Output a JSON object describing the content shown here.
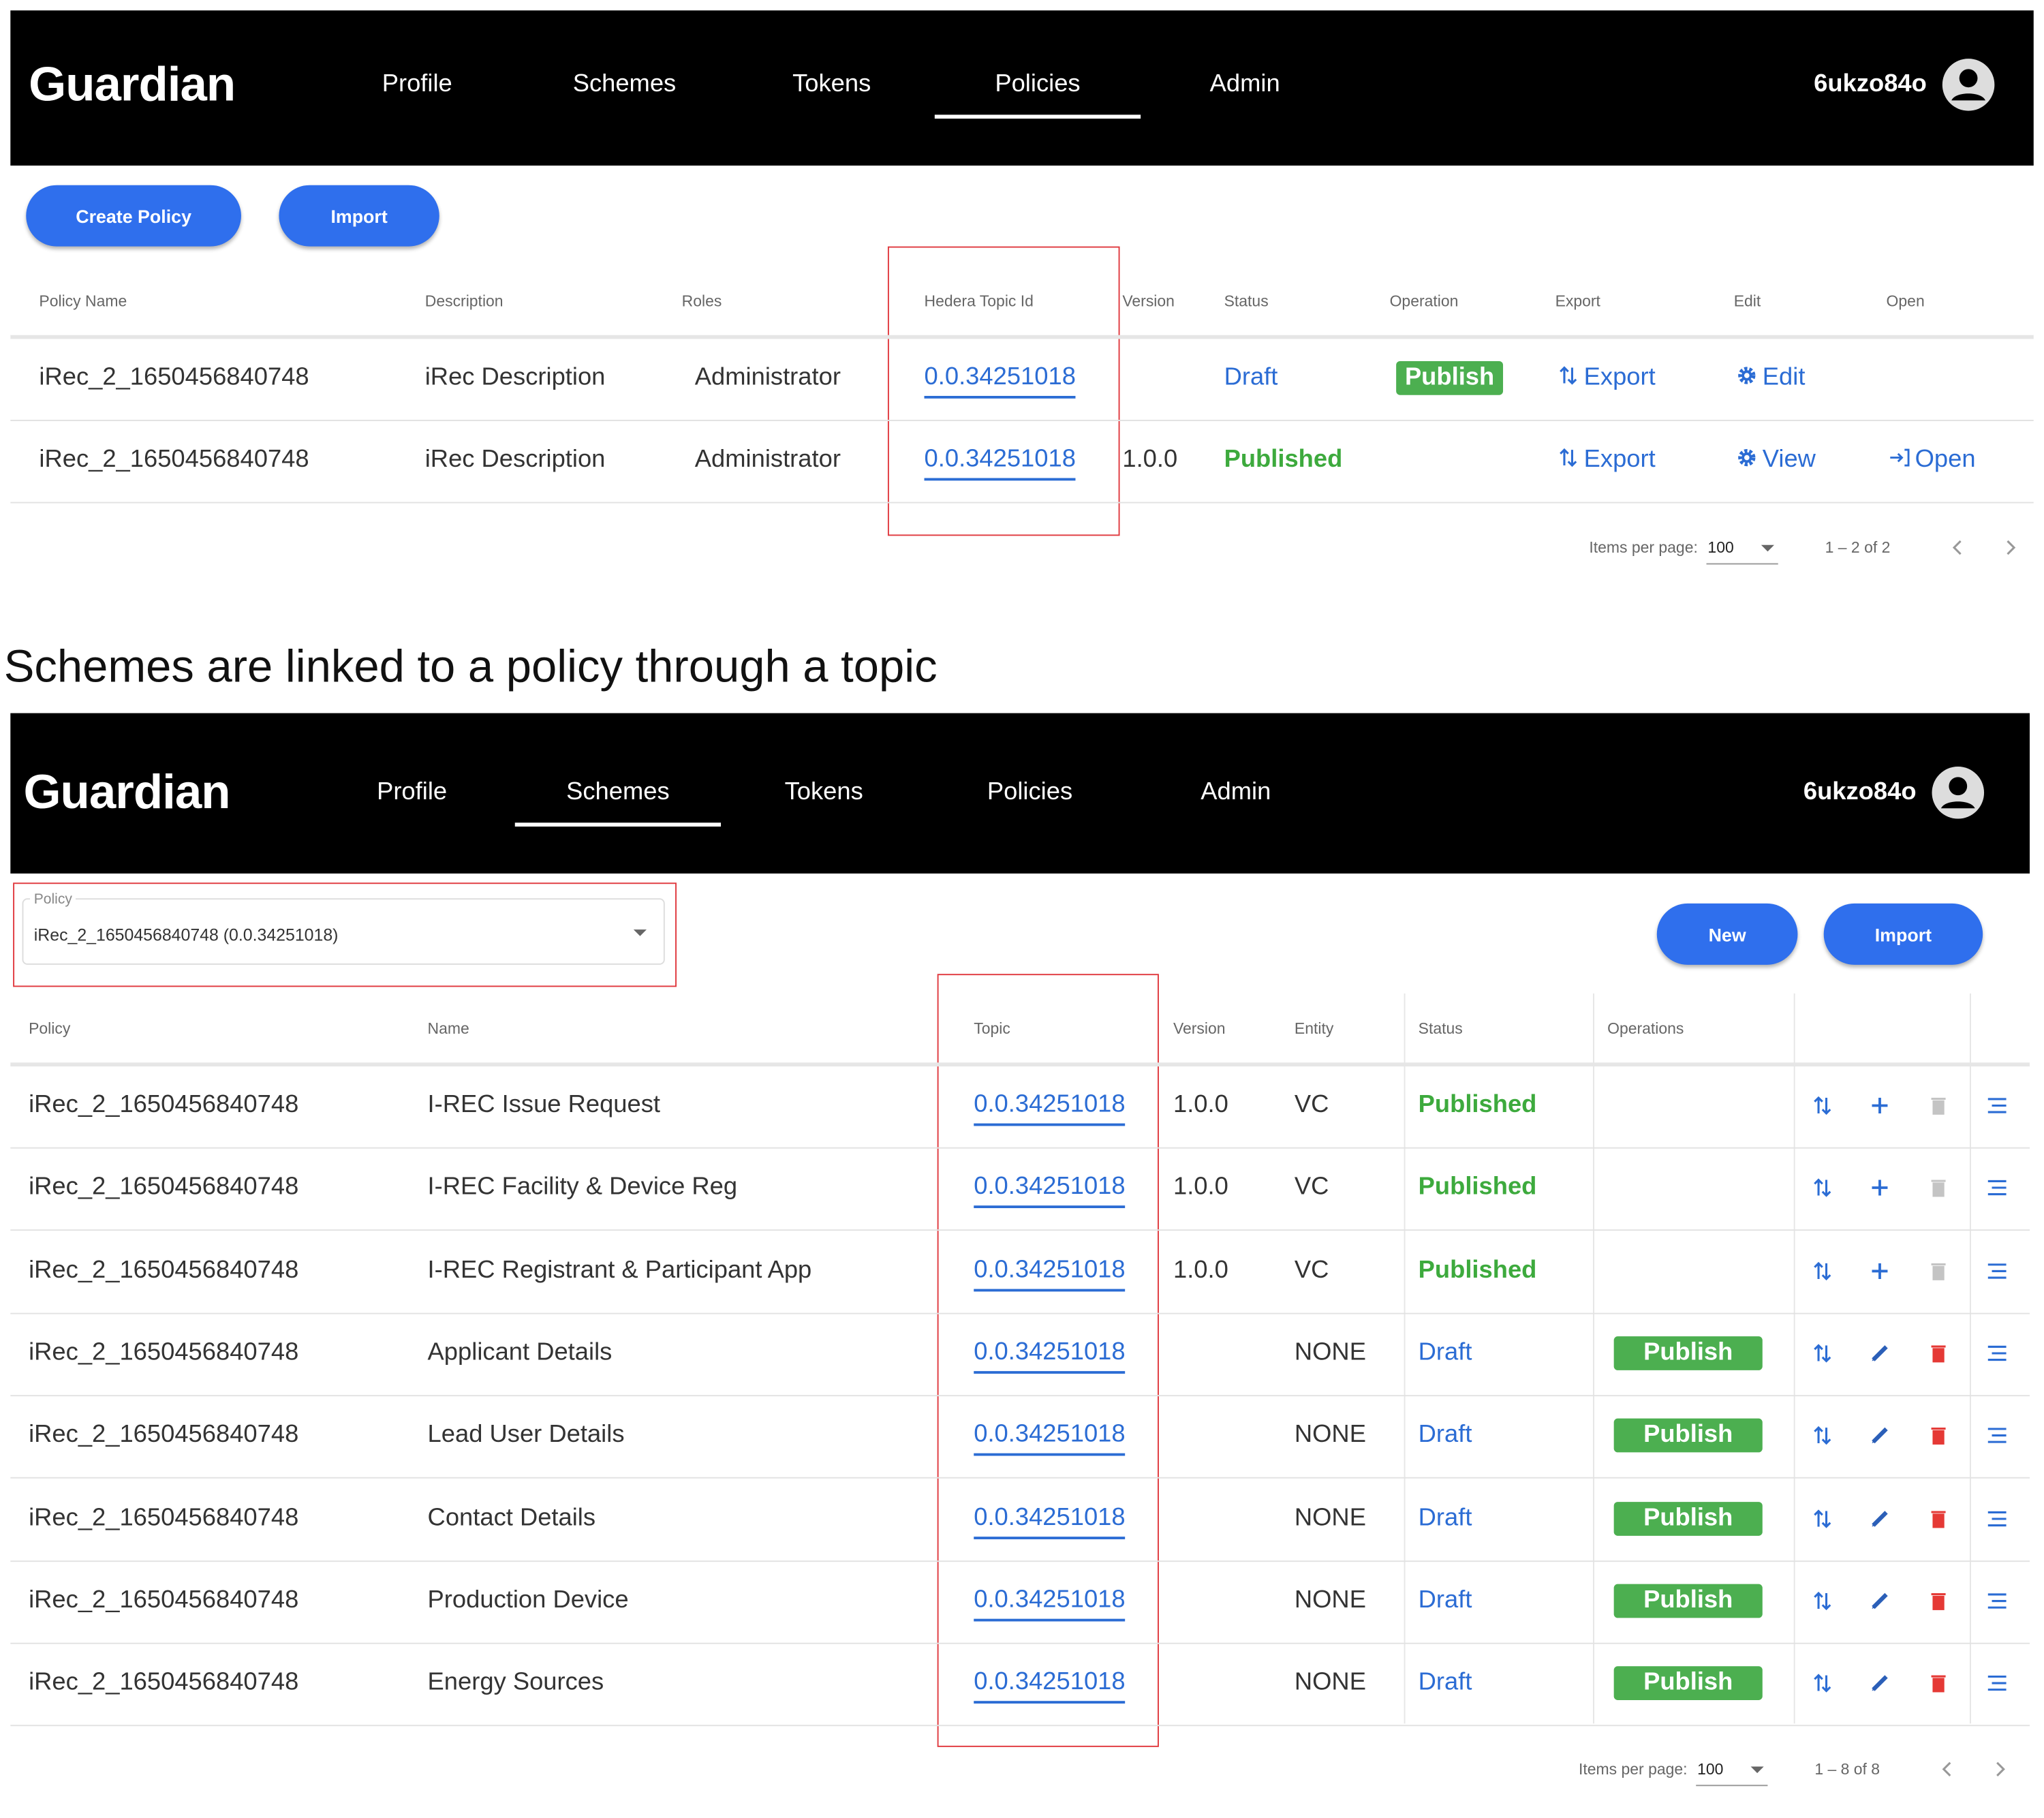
{
  "screen1": {
    "brand": "Guardian",
    "nav": [
      "Profile",
      "Schemes",
      "Tokens",
      "Policies",
      "Admin"
    ],
    "user": "6ukzo84o",
    "buttons": [
      "Create Policy",
      "Import"
    ],
    "columns": [
      "Policy Name",
      "Description",
      "Roles",
      "Hedera Topic Id",
      "Version",
      "Status",
      "Operation",
      "Export",
      "Edit",
      "Open"
    ],
    "rows": [
      {
        "name": "iRec_2_1650456840748",
        "description": "iRec Description",
        "role": "Administrator",
        "topic": "0.0.34251018",
        "status": "Draft",
        "operation": "Publish",
        "export": "Export",
        "edit": "Edit"
      },
      {
        "name": "iRec_2_1650456840748",
        "description": "iRec Description",
        "role": "Administrator",
        "topic": "0.0.34251018",
        "version": "1.0.0",
        "status": "Published",
        "export": "Export",
        "edit": "View",
        "open": "Open"
      }
    ],
    "paginator": {
      "label": "Items per page:",
      "size": "100",
      "range": "1 – 2 of 2"
    }
  },
  "caption": "Schemes are linked to a policy through a topic",
  "screen2": {
    "brand": "Guardian",
    "nav": [
      "Profile",
      "Schemes",
      "Tokens",
      "Policies",
      "Admin"
    ],
    "user": "6ukzo84o",
    "policy_field": {
      "label": "Policy",
      "value": "iRec_2_1650456840748 (0.0.34251018)"
    },
    "buttons": [
      "New",
      "Import"
    ],
    "columns": [
      "Policy",
      "Name",
      "Topic",
      "Version",
      "Entity",
      "Status",
      "Operations"
    ],
    "rows": [
      {
        "policy": "iRec_2_1650456840748",
        "name": "I-REC Issue Request",
        "topic": "0.0.34251018",
        "version": "1.0.0",
        "entity": "VC",
        "status": "Published"
      },
      {
        "policy": "iRec_2_1650456840748",
        "name": "I-REC Facility & Device Reg",
        "topic": "0.0.34251018",
        "version": "1.0.0",
        "entity": "VC",
        "status": "Published"
      },
      {
        "policy": "iRec_2_1650456840748",
        "name": "I-REC Registrant & Participant App",
        "topic": "0.0.34251018",
        "version": "1.0.0",
        "entity": "VC",
        "status": "Published"
      },
      {
        "policy": "iRec_2_1650456840748",
        "name": "Applicant Details",
        "topic": "0.0.34251018",
        "entity": "NONE",
        "status": "Draft",
        "operation": "Publish"
      },
      {
        "policy": "iRec_2_1650456840748",
        "name": "Lead User Details",
        "topic": "0.0.34251018",
        "entity": "NONE",
        "status": "Draft",
        "operation": "Publish"
      },
      {
        "policy": "iRec_2_1650456840748",
        "name": "Contact Details",
        "topic": "0.0.34251018",
        "entity": "NONE",
        "status": "Draft",
        "operation": "Publish"
      },
      {
        "policy": "iRec_2_1650456840748",
        "name": "Production Device",
        "topic": "0.0.34251018",
        "entity": "NONE",
        "status": "Draft",
        "operation": "Publish"
      },
      {
        "policy": "iRec_2_1650456840748",
        "name": "Energy Sources",
        "topic": "0.0.34251018",
        "entity": "NONE",
        "status": "Draft",
        "operation": "Publish"
      }
    ],
    "paginator": {
      "label": "Items per page:",
      "size": "100",
      "range": "1 – 8 of 8"
    }
  }
}
